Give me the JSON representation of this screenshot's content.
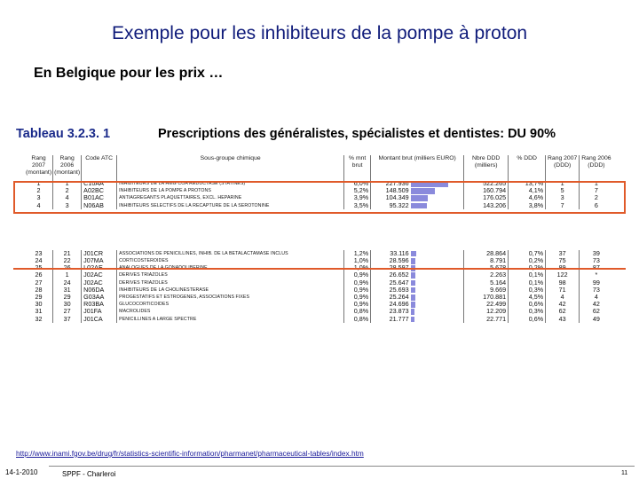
{
  "slide": {
    "title": "Exemple pour les inhibiteurs de la pompe à proton",
    "subtitle": "En Belgique pour les prix …",
    "table_label": "Tableau 3.2.3. 1",
    "table_heading": "Prescriptions des généralistes, spécialistes et dentistes: DU 90%",
    "url": "http://www.inami.fgov.be/drug/fr/statistics-scientific-information/pharmanet/pharmaceutical-tables/index.htm",
    "date": "14-1-2010",
    "org": "SPPF - Charleroi",
    "page": "11"
  },
  "table": {
    "headers": [
      "Rang 2007 (montant)",
      "Rang 2006 (montant)",
      "Code ATC",
      "Sous-groupe chimique",
      "% mnt brut",
      "Montant brut (milliers EURO)",
      "Nbre DDD (milliers)",
      "% DDD",
      "Rang 2007 (DDD)",
      "Rang 2006 (DDD)"
    ],
    "rows_top": [
      {
        "r07": "1",
        "r06": "1",
        "atc": "C10AA",
        "name": "INHIBITEURS DE LA HMG COA REDUCTASE (STATINES)",
        "pct": "6,0%",
        "amt": "227.936",
        "ddd": "522.265",
        "pddd": "13,7%",
        "d07": "1",
        "d06": "1",
        "bar": 1.0
      },
      {
        "r07": "2",
        "r06": "2",
        "atc": "A02BC",
        "name": "INHIBITEURS DE LA POMPE A PROTONS",
        "pct": "5,2%",
        "amt": "148.509",
        "ddd": "160.794",
        "pddd": "4,1%",
        "d07": "5",
        "d06": "7",
        "bar": 0.65
      },
      {
        "r07": "3",
        "r06": "4",
        "atc": "B01AC",
        "name": "ANTIAGREGANTS PLAQUETTAIRES, EXCL. HEPARINE",
        "pct": "3,9%",
        "amt": "104.349",
        "ddd": "176.025",
        "pddd": "4,6%",
        "d07": "3",
        "d06": "2",
        "bar": 0.46
      },
      {
        "r07": "4",
        "r06": "3",
        "atc": "N06AB",
        "name": "INHIBITEURS SELECTIFS DE LA RECAPTURE DE LA SEROTONINE",
        "pct": "3,5%",
        "amt": "95.322",
        "ddd": "143.206",
        "pddd": "3,8%",
        "d07": "7",
        "d06": "6",
        "bar": 0.42
      }
    ],
    "rows_bottom": [
      {
        "r07": "23",
        "r06": "21",
        "atc": "J01CR",
        "name": "ASSOCIATIONS DE PENICILLINES, INHIB. DE LA BETALACTAMASE INCLUS",
        "pct": "1,2%",
        "amt": "33.116",
        "ddd": "28.864",
        "pddd": "0,7%",
        "d07": "37",
        "d06": "39",
        "bar": 0.145
      },
      {
        "r07": "24",
        "r06": "22",
        "atc": "J07MA",
        "name": "CORTICOSTEROIDES",
        "pct": "1,0%",
        "amt": "28.596",
        "ddd": "8.791",
        "pddd": "0,2%",
        "d07": "75",
        "d06": "73",
        "bar": 0.125
      },
      {
        "r07": "25",
        "r06": "26",
        "atc": "L02AE",
        "name": "ANALOGUES DE LA GONADOLIBERINE",
        "pct": "1,0%",
        "amt": "28.597",
        "ddd": "5.678",
        "pddd": "0,2%",
        "d07": "89",
        "d06": "87",
        "bar": 0.125
      },
      {
        "r07": "26",
        "r06": "1",
        "atc": "J02AC",
        "name": "DERIVES TRIAZOLES",
        "pct": "0,9%",
        "amt": "26.652",
        "ddd": "2.263",
        "pddd": "0,1%",
        "d07": "122",
        "d06": "*",
        "bar": 0.117
      },
      {
        "r07": "27",
        "r06": "24",
        "atc": "J02AC",
        "name": "DERIVES TRIAZOLES",
        "pct": "0,9%",
        "amt": "25.647",
        "ddd": "5.164",
        "pddd": "0,1%",
        "d07": "98",
        "d06": "99",
        "bar": 0.113
      },
      {
        "r07": "28",
        "r06": "31",
        "atc": "N06DA",
        "name": "INHIBITEURS DE LA CHOLINESTERASE",
        "pct": "0,9%",
        "amt": "25.693",
        "ddd": "9.669",
        "pddd": "0,3%",
        "d07": "71",
        "d06": "73",
        "bar": 0.113
      },
      {
        "r07": "29",
        "r06": "29",
        "atc": "G03AA",
        "name": "PROGESTATIFS ET ESTROGENES, ASSOCIATIONS FIXES",
        "pct": "0,9%",
        "amt": "25.264",
        "ddd": "170.881",
        "pddd": "4,5%",
        "d07": "4",
        "d06": "4",
        "bar": 0.111
      },
      {
        "r07": "30",
        "r06": "30",
        "atc": "R03BA",
        "name": "GLUCOCORTICOIDES",
        "pct": "0,9%",
        "amt": "24.696",
        "ddd": "22.499",
        "pddd": "0,6%",
        "d07": "42",
        "d06": "42",
        "bar": 0.108
      },
      {
        "r07": "31",
        "r06": "27",
        "atc": "J01FA",
        "name": "MACROLIDES",
        "pct": "0,8%",
        "amt": "23.873",
        "ddd": "12.209",
        "pddd": "0,3%",
        "d07": "62",
        "d06": "62",
        "bar": 0.105
      },
      {
        "r07": "32",
        "r06": "37",
        "atc": "J01CA",
        "name": "PENICILLINES A LARGE SPECTRE",
        "pct": "0,8%",
        "amt": "21.777",
        "ddd": "22.771",
        "pddd": "0,6%",
        "d07": "43",
        "d06": "49",
        "bar": 0.096
      }
    ]
  },
  "colors": {
    "title": "#0f1b7a",
    "highlight": "#e05a2a",
    "bar": "#8a8adc"
  }
}
